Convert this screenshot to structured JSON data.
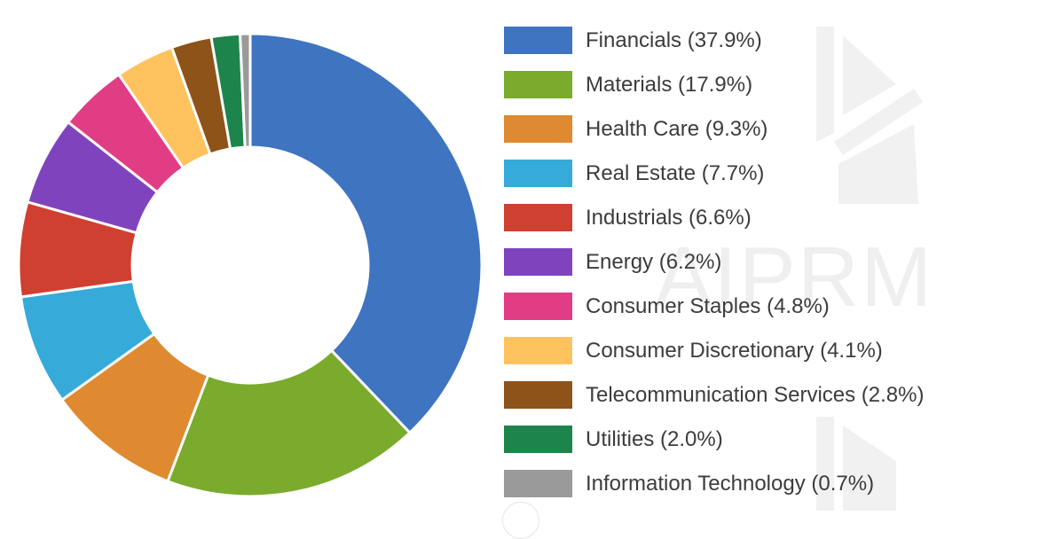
{
  "chart_data": {
    "type": "pie",
    "variant": "donut",
    "title": "",
    "start_angle": "12 o'clock, clockwise",
    "categories": [
      "Financials",
      "Materials",
      "Health Care",
      "Real Estate",
      "Industrials",
      "Energy",
      "Consumer Staples",
      "Consumer Discretionary",
      "Telecommunication Services",
      "Utilities",
      "Information Technology"
    ],
    "values": [
      37.9,
      17.9,
      9.3,
      7.7,
      6.6,
      6.2,
      4.8,
      4.1,
      2.8,
      2.0,
      0.7
    ],
    "unit": "%",
    "colors": [
      "#3e74c0",
      "#7aab2d",
      "#df8a30",
      "#36abd9",
      "#d04030",
      "#7f44bd",
      "#e03d85",
      "#fec35e",
      "#8e5319",
      "#1d854b",
      "#9a9a9a"
    ],
    "legend_position": "right",
    "legend": [
      {
        "label": "Financials (37.9%)",
        "color": "#3e74c0"
      },
      {
        "label": "Materials (17.9%)",
        "color": "#7aab2d"
      },
      {
        "label": "Health Care (9.3%)",
        "color": "#df8a30"
      },
      {
        "label": "Real Estate (7.7%)",
        "color": "#36abd9"
      },
      {
        "label": "Industrials (6.6%)",
        "color": "#d04030"
      },
      {
        "label": "Energy (6.2%)",
        "color": "#7f44bd"
      },
      {
        "label": "Consumer Staples (4.8%)",
        "color": "#e03d85"
      },
      {
        "label": "Consumer Discretionary (4.1%)",
        "color": "#fec35e"
      },
      {
        "label": "Telecommunication Services (2.8%)",
        "color": "#8e5319"
      },
      {
        "label": "Utilities (2.0%)",
        "color": "#1d854b"
      },
      {
        "label": "Information Technology (0.7%)",
        "color": "#9a9a9a"
      }
    ]
  },
  "watermark": {
    "text": "AIPRM"
  }
}
